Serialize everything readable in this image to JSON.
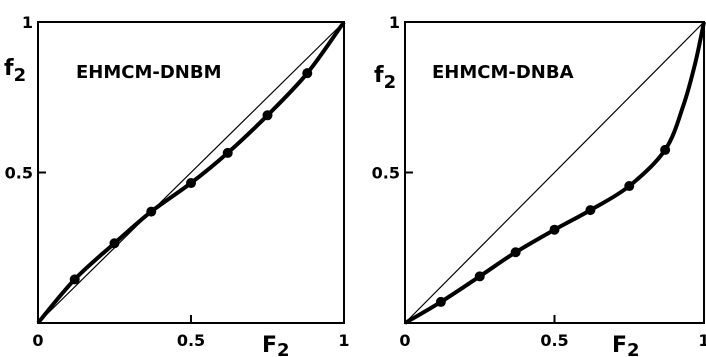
{
  "chart_data": [
    {
      "type": "line",
      "title": "EHMCM-DNBM",
      "xlabel": "F2",
      "ylabel": "f2",
      "xlim": [
        0,
        1
      ],
      "ylim": [
        0,
        1
      ],
      "x_ticks": [
        "0",
        "0.5",
        "1"
      ],
      "y_ticks": [
        "0.5",
        "1"
      ],
      "grid": false,
      "diagonal": [
        [
          0,
          0
        ],
        [
          1,
          1
        ]
      ],
      "curve": [
        [
          0,
          0
        ],
        [
          0.12,
          0.145
        ],
        [
          0.25,
          0.265
        ],
        [
          0.37,
          0.37
        ],
        [
          0.5,
          0.465
        ],
        [
          0.62,
          0.565
        ],
        [
          0.75,
          0.69
        ],
        [
          0.88,
          0.83
        ],
        [
          1,
          1
        ]
      ],
      "series": [
        {
          "x": [
            0.12,
            0.25,
            0.37,
            0.5,
            0.62,
            0.75,
            0.88
          ],
          "y": [
            0.145,
            0.265,
            0.37,
            0.465,
            0.565,
            0.69,
            0.83
          ]
        }
      ]
    },
    {
      "type": "line",
      "title": "EHMCM-DNBA",
      "xlabel": "F2",
      "ylabel": "f2",
      "xlim": [
        0,
        1
      ],
      "ylim": [
        0,
        1
      ],
      "x_ticks": [
        "0",
        "0.5",
        "1"
      ],
      "y_ticks": [
        "0.5",
        "1"
      ],
      "grid": false,
      "diagonal": [
        [
          0,
          0
        ],
        [
          1,
          1
        ]
      ],
      "curve": [
        [
          0,
          0
        ],
        [
          0.12,
          0.07
        ],
        [
          0.25,
          0.155
        ],
        [
          0.37,
          0.235
        ],
        [
          0.5,
          0.31
        ],
        [
          0.62,
          0.375
        ],
        [
          0.75,
          0.455
        ],
        [
          0.87,
          0.575
        ],
        [
          0.93,
          0.72
        ],
        [
          0.97,
          0.86
        ],
        [
          1,
          1
        ]
      ],
      "series": [
        {
          "x": [
            0.12,
            0.25,
            0.37,
            0.5,
            0.62,
            0.75,
            0.87
          ],
          "y": [
            0.07,
            0.155,
            0.235,
            0.31,
            0.375,
            0.455,
            0.575
          ]
        }
      ]
    }
  ]
}
